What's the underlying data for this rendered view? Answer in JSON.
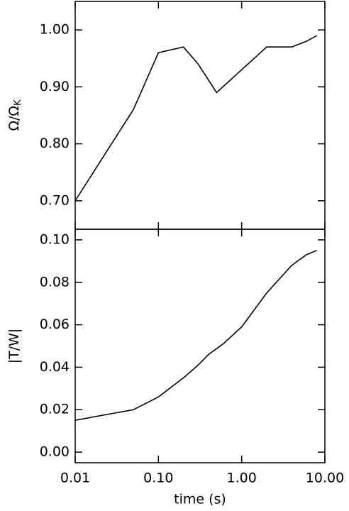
{
  "chart_data": [
    {
      "type": "line",
      "xlog": true,
      "xlim": [
        0.01,
        10
      ],
      "xticks": [
        0.01,
        {
          "value": 0.1,
          "label": "0.10"
        },
        {
          "value": 1,
          "label": "1.00"
        },
        {
          "value": 10,
          "label": "10.00"
        }
      ],
      "show_xtick_labels": false,
      "ylabel": "Ω/Ω",
      "ylabel_sub": "K",
      "ylim": [
        0.65,
        1.05
      ],
      "yticks": [
        {
          "value": 0.7,
          "label": "0.70"
        },
        {
          "value": 0.8,
          "label": "0.80"
        },
        {
          "value": 0.9,
          "label": "0.90"
        },
        {
          "value": 1.0,
          "label": "1.00"
        }
      ],
      "x": [
        0.01,
        0.05,
        0.1,
        0.2,
        0.3,
        0.5,
        1.0,
        2.0,
        4.0,
        6.0,
        8.0
      ],
      "series": [
        {
          "color": "#000000",
          "values": [
            0.7,
            0.86,
            0.96,
            0.97,
            0.94,
            0.89,
            0.93,
            0.97,
            0.97,
            0.98,
            0.99
          ]
        }
      ]
    },
    {
      "type": "line",
      "xlog": true,
      "xlim": [
        0.01,
        10
      ],
      "xticks": [
        0.01,
        {
          "value": 0.1,
          "label": "0.10"
        },
        {
          "value": 1,
          "label": "1.00"
        },
        {
          "value": 10,
          "label": "10.00"
        }
      ],
      "show_xtick_labels": true,
      "xlabel": "time (s)",
      "ylabel": "|T/W|",
      "ylim": [
        -0.005,
        0.105
      ],
      "yticks": [
        {
          "value": 0,
          "label": "0.00"
        },
        0.02,
        0.04,
        0.06,
        0.08,
        {
          "value": 0.1,
          "label": "0.10"
        }
      ],
      "x": [
        0.01,
        0.05,
        0.1,
        0.2,
        0.3,
        0.4,
        0.6,
        1.0,
        2.0,
        4.0,
        6.0,
        8.0
      ],
      "series": [
        {
          "color": "#000000",
          "values": [
            0.015,
            0.02,
            0.026,
            0.035,
            0.041,
            0.046,
            0.051,
            0.059,
            0.075,
            0.088,
            0.093,
            0.095
          ]
        }
      ]
    }
  ]
}
